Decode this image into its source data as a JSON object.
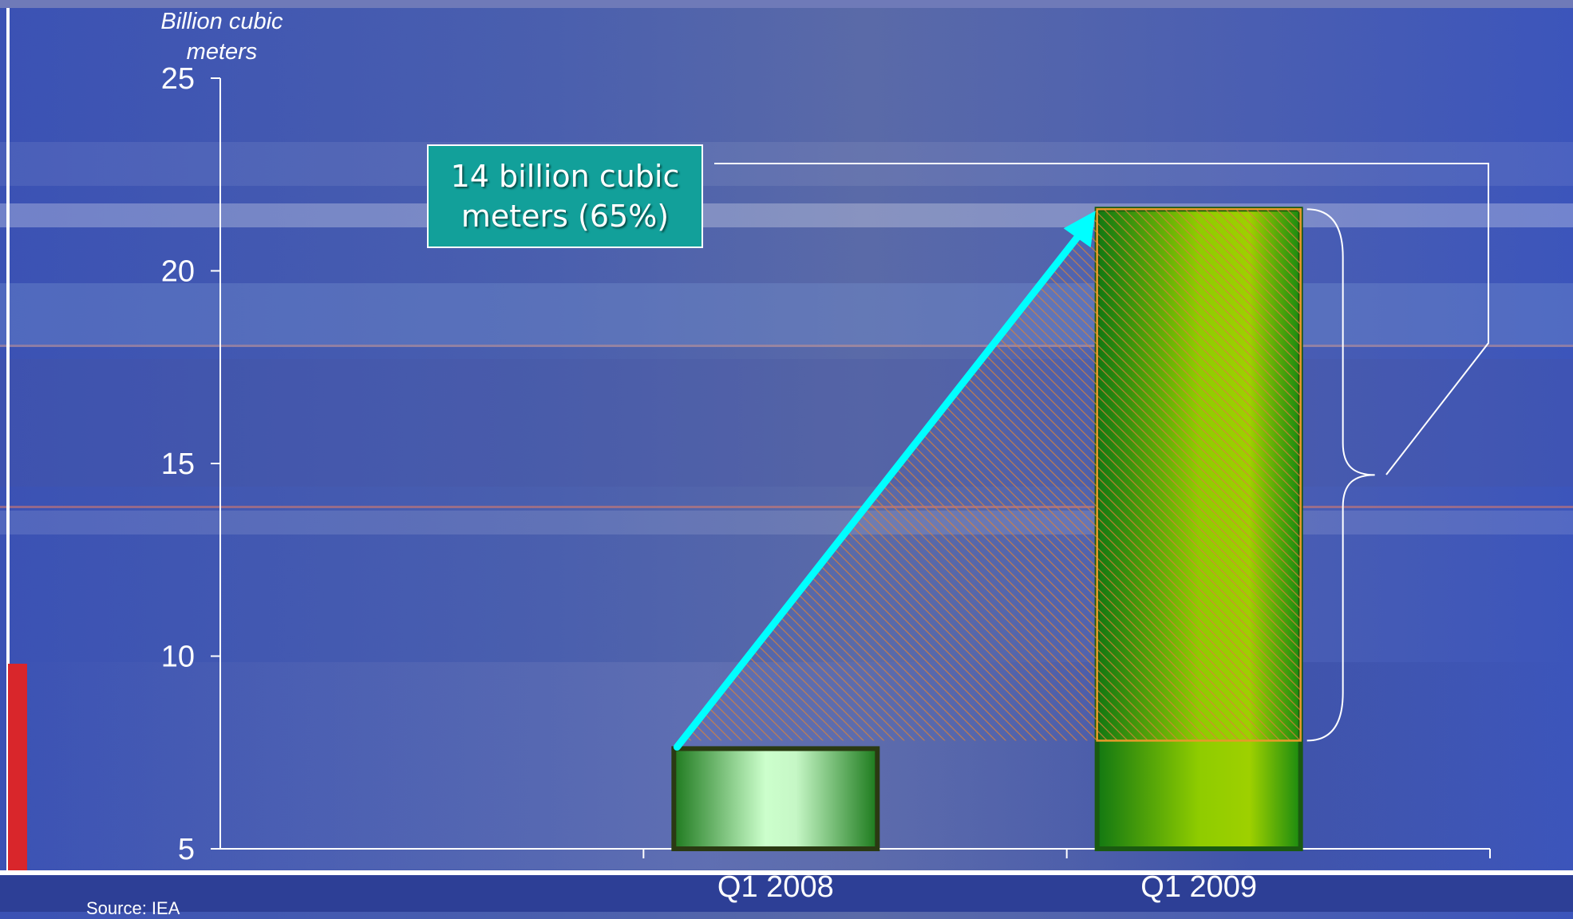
{
  "source_note": "Source: IEA",
  "colors": {
    "background": "#4a5fae",
    "bar_2008": "#b8f0b8",
    "bar_2009": "#8cc800",
    "callout": "#12a09a",
    "arrow": "#00ffff",
    "hatch": "#d9823a"
  },
  "chart_data": {
    "type": "bar",
    "title": "",
    "ylabel": "Billion cubic meters",
    "xlabel": "",
    "categories": [
      "Q1 2008",
      "Q1 2009"
    ],
    "values": [
      7.6,
      21.6
    ],
    "ylim": [
      5,
      25
    ],
    "yticks": [
      5,
      10,
      15,
      20,
      25
    ],
    "grid": false,
    "annotation": {
      "text": "14 billion cubic meters (65%)",
      "from_category": "Q1 2008",
      "to_category": "Q1 2009",
      "increase": 14,
      "increase_percent": 65
    }
  }
}
